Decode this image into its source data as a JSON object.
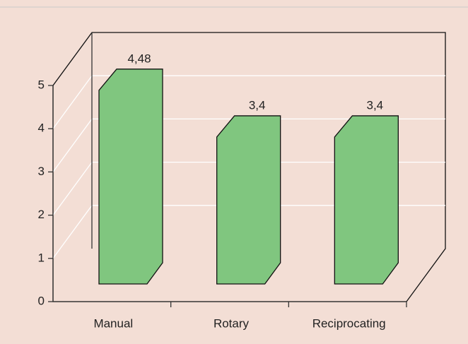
{
  "chart_data": {
    "type": "bar3d",
    "categories": [
      "Manual",
      "Rotary",
      "Reciprocating"
    ],
    "values": [
      4.48,
      3.4,
      3.4
    ],
    "value_labels": [
      "4,48",
      "3,4",
      "3,4"
    ],
    "color": "#80c67f",
    "ylim": [
      0,
      5
    ],
    "yticks": [
      0,
      1,
      2,
      3,
      4,
      5
    ],
    "grid": true
  }
}
